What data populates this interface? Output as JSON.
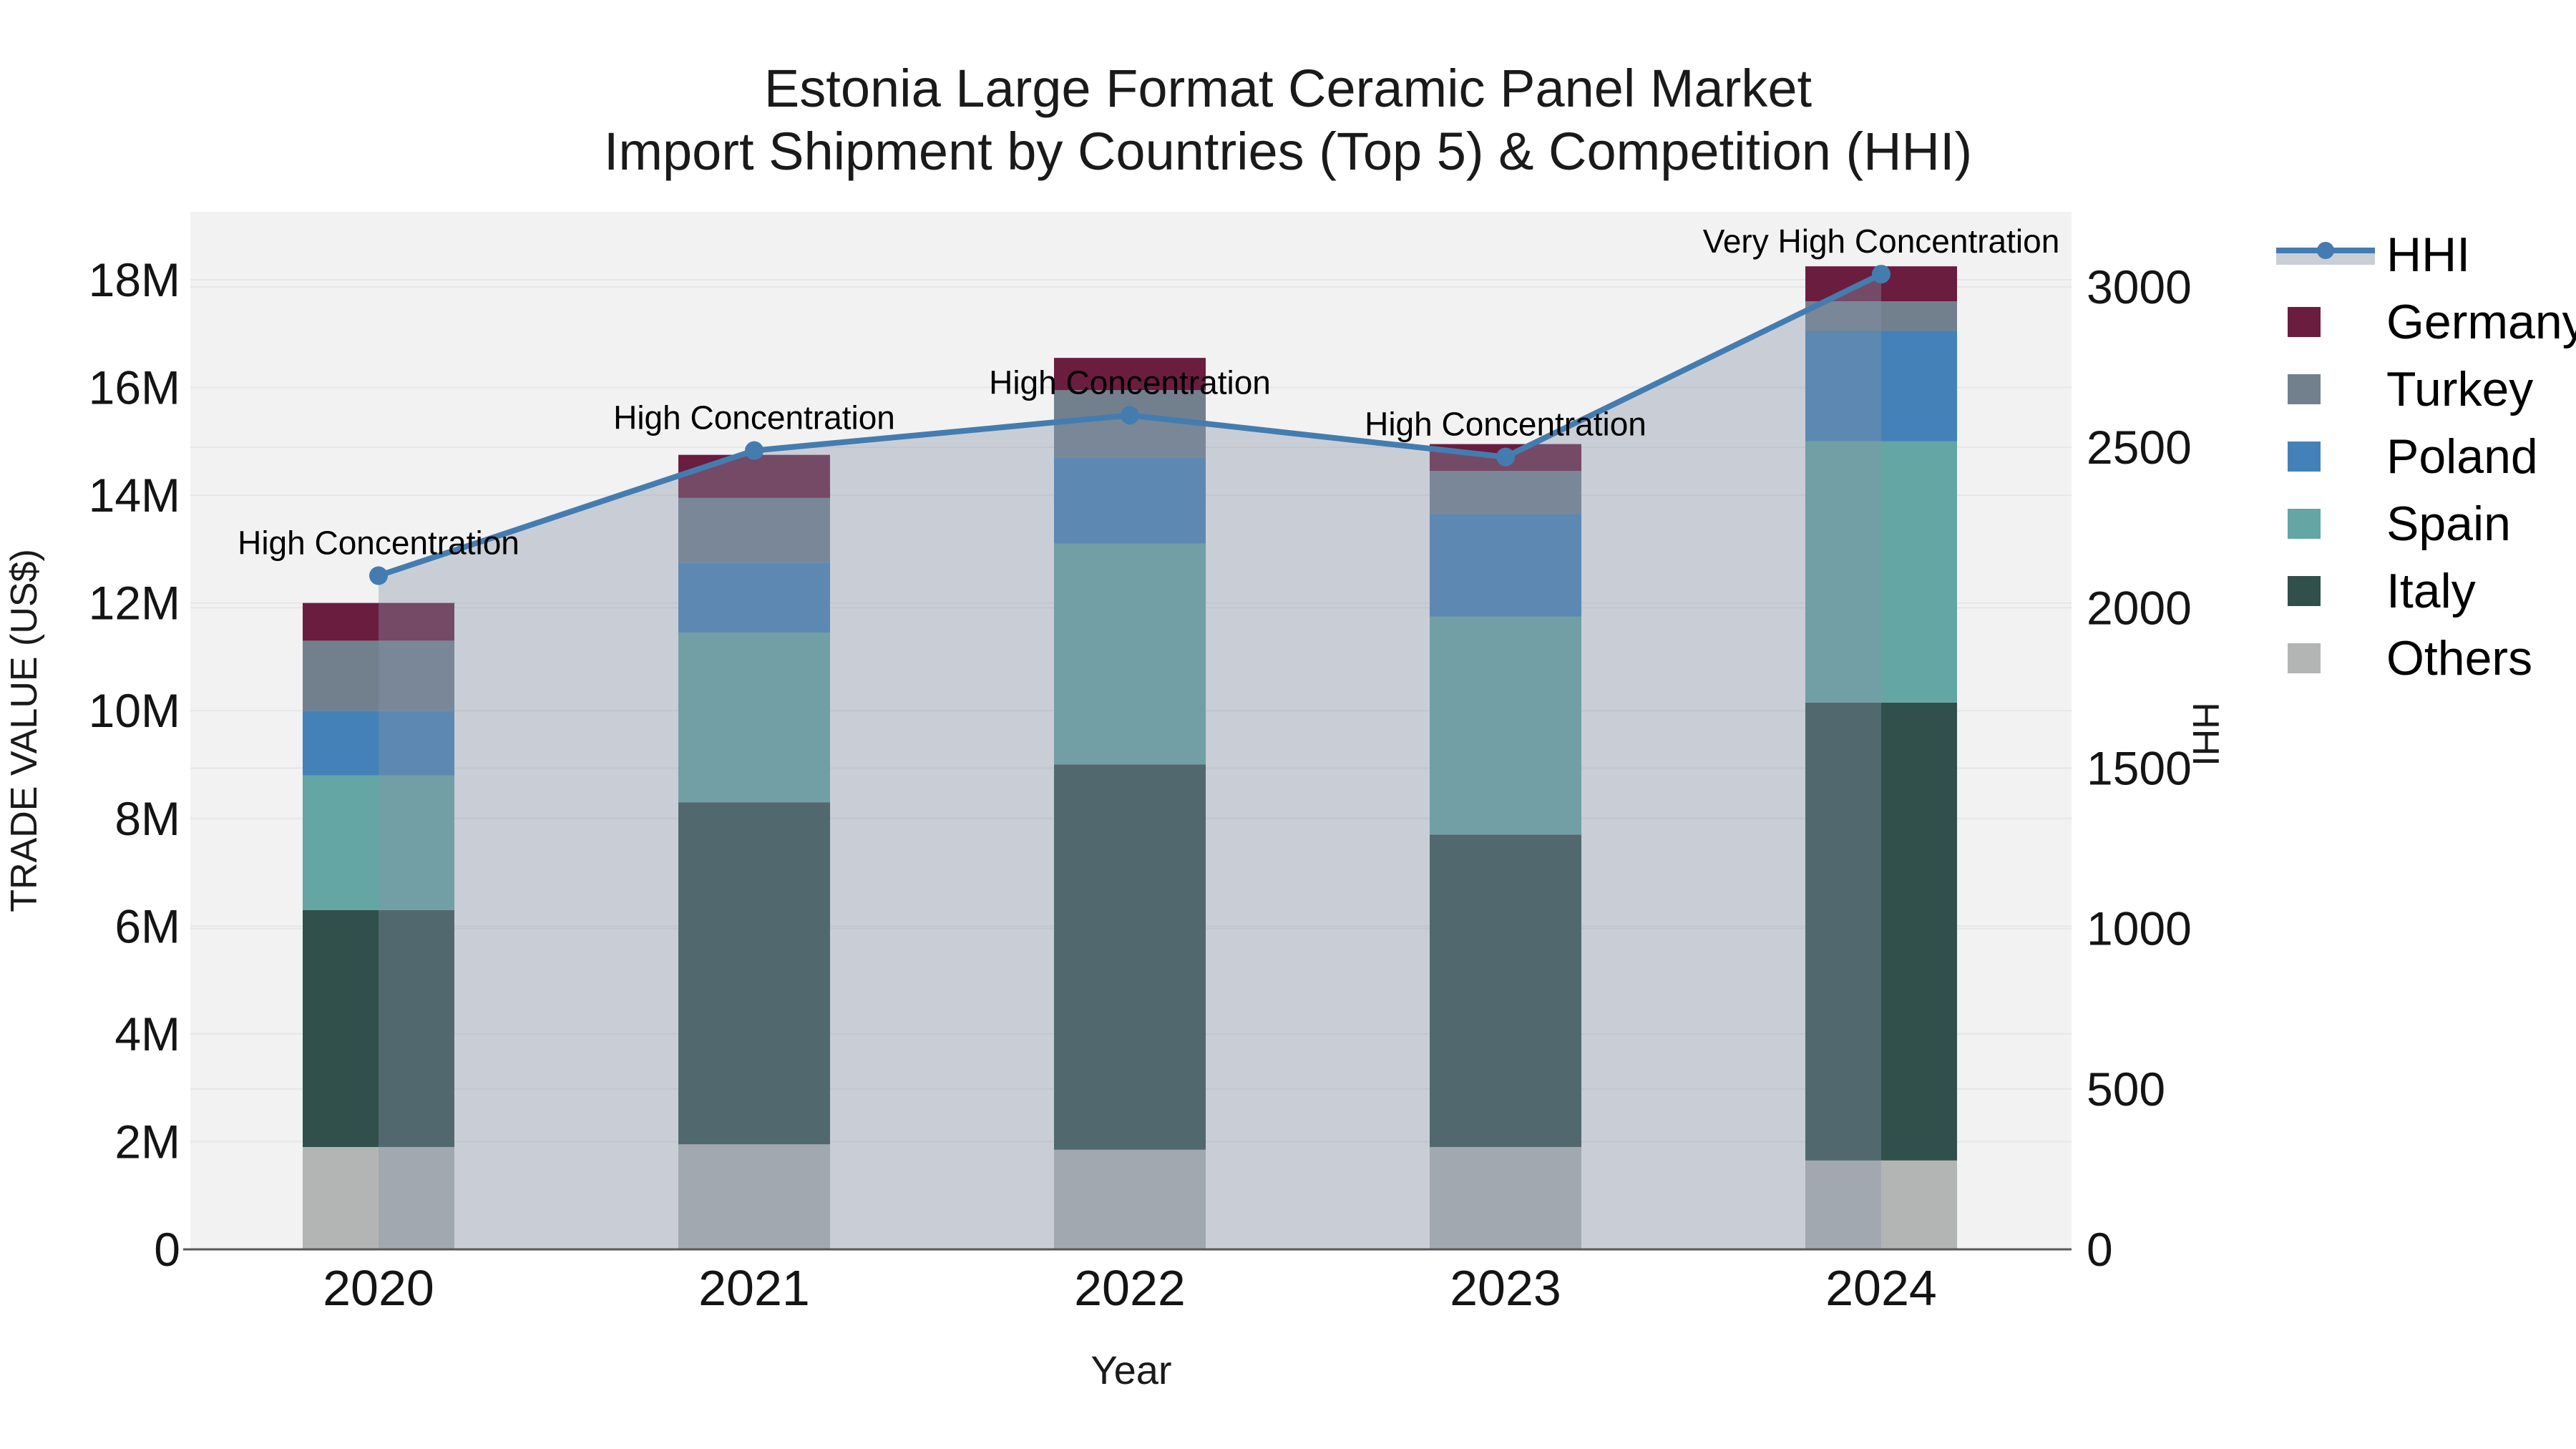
{
  "title": {
    "line1": "Estonia Large Format Ceramic Panel Market",
    "line2": "Import Shipment by Countries (Top 5) & Competition (HHI)"
  },
  "axes": {
    "x": {
      "title": "Year",
      "categories": [
        "2020",
        "2021",
        "2022",
        "2023",
        "2024"
      ]
    },
    "y_left": {
      "title": "TRADE VALUE (US$)",
      "tick_labels": [
        "0",
        "2M",
        "4M",
        "6M",
        "8M",
        "10M",
        "12M",
        "14M",
        "16M",
        "18M"
      ],
      "tick_step": 2000000,
      "range": [
        0,
        19300000
      ]
    },
    "y_right": {
      "title": "HHI",
      "tick_labels": [
        "0",
        "500",
        "1000",
        "1500",
        "2000",
        "2500",
        "3000"
      ],
      "tick_step": 500,
      "range": [
        0,
        3235
      ]
    }
  },
  "legend": {
    "items": [
      {
        "label": "HHI",
        "symbol": "line-marker",
        "color": "#447cb0"
      },
      {
        "label": "Germany",
        "symbol": "swatch",
        "color": "#6b1d3f"
      },
      {
        "label": "Turkey",
        "symbol": "swatch",
        "color": "#72808e"
      },
      {
        "label": "Poland",
        "symbol": "swatch",
        "color": "#4381b8"
      },
      {
        "label": "Spain",
        "symbol": "swatch",
        "color": "#64a6a3"
      },
      {
        "label": "Italy",
        "symbol": "swatch",
        "color": "#31504b"
      },
      {
        "label": "Others",
        "symbol": "swatch",
        "color": "#b3b5b4"
      }
    ]
  },
  "style": {
    "plot_bg": "#f2f2f2",
    "gridline": "#e6e6e6",
    "axis_line": "#58585a",
    "text_color": "#141414",
    "hhi_line": "#447cb0",
    "hhi_area_fill": "rgba(135,148,169,0.38)",
    "legend_area_band": "#c9ced7"
  },
  "chart_data": {
    "type": "bar",
    "subtype": "stacked-bars-with-line-overlay",
    "title": "Estonia Large Format Ceramic Panel Market — Import Shipment by Countries (Top 5) & Competition (HHI)",
    "xlabel": "Year",
    "ylabel_left": "TRADE VALUE (US$)",
    "ylabel_right": "HHI",
    "categories": [
      "2020",
      "2021",
      "2022",
      "2023",
      "2024"
    ],
    "value_unit": "US$",
    "stack_order_bottom_to_top": [
      "Others",
      "Italy",
      "Spain",
      "Poland",
      "Turkey",
      "Germany"
    ],
    "series": [
      {
        "name": "Others",
        "color": "#b3b5b4",
        "values": [
          1900000,
          1950000,
          1850000,
          1900000,
          1650000
        ]
      },
      {
        "name": "Italy",
        "color": "#31504b",
        "values": [
          4400000,
          6350000,
          7150000,
          5800000,
          8500000
        ]
      },
      {
        "name": "Spain",
        "color": "#64a6a3",
        "values": [
          2500000,
          3150000,
          4100000,
          4050000,
          4850000
        ]
      },
      {
        "name": "Poland",
        "color": "#4381b8",
        "values": [
          1200000,
          1300000,
          1600000,
          1900000,
          2050000
        ]
      },
      {
        "name": "Turkey",
        "color": "#72808e",
        "values": [
          1300000,
          1200000,
          1250000,
          800000,
          550000
        ]
      },
      {
        "name": "Germany",
        "color": "#6b1d3f",
        "values": [
          700000,
          800000,
          600000,
          500000,
          650000
        ]
      }
    ],
    "stack_totals": [
      12000000,
      14750000,
      16550000,
      14950000,
      18250000
    ],
    "line_series": {
      "name": "HHI",
      "axis": "right",
      "color": "#447cb0",
      "values": [
        2100,
        2490,
        2600,
        2470,
        3040
      ]
    },
    "annotations": [
      {
        "category": "2020",
        "text": "High Concentration"
      },
      {
        "category": "2021",
        "text": "High Concentration"
      },
      {
        "category": "2022",
        "text": "High Concentration"
      },
      {
        "category": "2023",
        "text": "High Concentration"
      },
      {
        "category": "2024",
        "text": "Very High Concentration"
      }
    ],
    "ylim_left": [
      0,
      19300000
    ],
    "ylim_right": [
      0,
      3235
    ],
    "grid": true,
    "legend_position": "right"
  }
}
